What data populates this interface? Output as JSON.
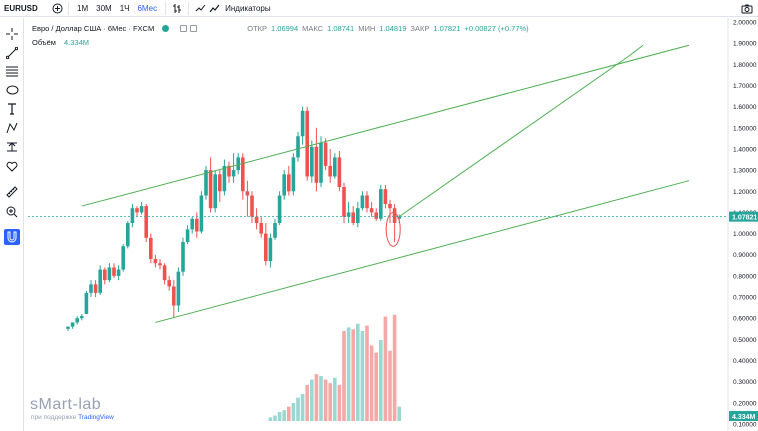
{
  "toolbar": {
    "symbol": "EURUSD",
    "intervals": [
      "1М",
      "30М",
      "1Ч",
      "6Мес"
    ],
    "active_interval": "6Мес",
    "indicators_label": "Индикаторы"
  },
  "legend": {
    "title": "Евро / Доллар США · 6Мес · FXCM",
    "open_label": "ОТКР",
    "open": "1.06994",
    "high_label": "МАКС",
    "high": "1.08741",
    "low_label": "МИН",
    "low": "1.04819",
    "close_label": "ЗАКР",
    "close": "1.07821",
    "change": "+0.00827 (+0.77%)",
    "volume_label": "Объём",
    "volume": "4.334M"
  },
  "price_badge": "1.07821",
  "volume_badge": "4.334M",
  "watermark": {
    "brand": "sMart-lab",
    "sub_prefix": "при поддержке",
    "sub_link": "TradingView"
  },
  "colors": {
    "up": "#26a69a",
    "down": "#ef5350",
    "vol_up": "#9ad8d2",
    "vol_down": "#f5a8a6",
    "trendline": "#4caf50",
    "accent": "#2962ff"
  },
  "chart_data": {
    "type": "candlestick",
    "title": "Евро / Доллар США · 6Мес · FXCM",
    "ylim": [
      0.1,
      2.0
    ],
    "y_ticks": [
      "2.00000",
      "1.90000",
      "1.80000",
      "1.70000",
      "1.60000",
      "1.50000",
      "1.40000",
      "1.30000",
      "1.20000",
      "1.10000",
      "1.00000",
      "0.90000",
      "0.80000",
      "0.70000",
      "0.60000",
      "0.50000",
      "0.40000",
      "0.30000",
      "0.20000",
      "0.10000"
    ],
    "candles": [
      [
        0.55,
        0.56,
        0.54,
        0.56
      ],
      [
        0.56,
        0.58,
        0.55,
        0.58
      ],
      [
        0.58,
        0.61,
        0.57,
        0.6
      ],
      [
        0.6,
        0.62,
        0.59,
        0.61
      ],
      [
        0.62,
        0.73,
        0.62,
        0.72
      ],
      [
        0.72,
        0.78,
        0.7,
        0.76
      ],
      [
        0.76,
        0.78,
        0.7,
        0.72
      ],
      [
        0.72,
        0.85,
        0.71,
        0.83
      ],
      [
        0.83,
        0.84,
        0.76,
        0.78
      ],
      [
        0.78,
        0.86,
        0.77,
        0.84
      ],
      [
        0.84,
        0.86,
        0.79,
        0.8
      ],
      [
        0.8,
        0.85,
        0.78,
        0.83
      ],
      [
        0.83,
        0.95,
        0.82,
        0.94
      ],
      [
        0.94,
        1.06,
        0.93,
        1.05
      ],
      [
        1.05,
        1.14,
        1.03,
        1.12
      ],
      [
        1.12,
        1.13,
        1.08,
        1.1
      ],
      [
        1.1,
        1.15,
        1.09,
        1.13
      ],
      [
        1.13,
        1.14,
        0.96,
        0.98
      ],
      [
        0.98,
        1.0,
        0.86,
        0.88
      ],
      [
        0.88,
        0.9,
        0.84,
        0.86
      ],
      [
        0.86,
        0.88,
        0.83,
        0.85
      ],
      [
        0.85,
        0.86,
        0.76,
        0.78
      ],
      [
        0.78,
        0.8,
        0.73,
        0.75
      ],
      [
        0.75,
        0.78,
        0.6,
        0.66
      ],
      [
        0.66,
        0.84,
        0.63,
        0.82
      ],
      [
        0.82,
        0.98,
        0.8,
        0.96
      ],
      [
        0.96,
        1.04,
        0.95,
        1.02
      ],
      [
        1.02,
        1.08,
        1.0,
        1.07
      ],
      [
        1.07,
        1.1,
        0.98,
        1.01
      ],
      [
        1.01,
        1.2,
        1.0,
        1.18
      ],
      [
        1.18,
        1.32,
        1.16,
        1.3
      ],
      [
        1.3,
        1.36,
        1.1,
        1.12
      ],
      [
        1.12,
        1.3,
        1.1,
        1.28
      ],
      [
        1.28,
        1.3,
        1.15,
        1.2
      ],
      [
        1.2,
        1.35,
        1.18,
        1.32
      ],
      [
        1.32,
        1.34,
        1.24,
        1.27
      ],
      [
        1.27,
        1.38,
        1.24,
        1.3
      ],
      [
        1.3,
        1.38,
        1.28,
        1.36
      ],
      [
        1.36,
        1.38,
        1.16,
        1.2
      ],
      [
        1.2,
        1.25,
        1.08,
        1.18
      ],
      [
        1.18,
        1.2,
        1.05,
        1.08
      ],
      [
        1.08,
        1.12,
        1.02,
        1.05
      ],
      [
        1.05,
        1.08,
        0.98,
        1.0
      ],
      [
        1.0,
        1.05,
        0.85,
        0.87
      ],
      [
        0.87,
        1.0,
        0.84,
        0.98
      ],
      [
        0.98,
        1.07,
        0.97,
        1.05
      ],
      [
        1.05,
        1.2,
        1.04,
        1.18
      ],
      [
        1.18,
        1.3,
        1.16,
        1.28
      ],
      [
        1.28,
        1.32,
        1.18,
        1.2
      ],
      [
        1.2,
        1.38,
        1.18,
        1.36
      ],
      [
        1.36,
        1.48,
        1.34,
        1.46
      ],
      [
        1.46,
        1.6,
        1.42,
        1.58
      ],
      [
        1.58,
        1.6,
        1.25,
        1.27
      ],
      [
        1.27,
        1.44,
        1.24,
        1.41
      ],
      [
        1.41,
        1.5,
        1.2,
        1.24
      ],
      [
        1.24,
        1.46,
        1.22,
        1.43
      ],
      [
        1.43,
        1.45,
        1.3,
        1.32
      ],
      [
        1.32,
        1.4,
        1.24,
        1.27
      ],
      [
        1.27,
        1.38,
        1.26,
        1.36
      ],
      [
        1.36,
        1.39,
        1.2,
        1.22
      ],
      [
        1.22,
        1.24,
        1.05,
        1.08
      ],
      [
        1.08,
        1.15,
        1.05,
        1.1
      ],
      [
        1.1,
        1.13,
        1.04,
        1.05
      ],
      [
        1.05,
        1.15,
        1.03,
        1.12
      ],
      [
        1.12,
        1.2,
        1.11,
        1.18
      ],
      [
        1.18,
        1.2,
        1.1,
        1.12
      ],
      [
        1.12,
        1.15,
        1.08,
        1.1
      ],
      [
        1.1,
        1.12,
        1.06,
        1.07
      ],
      [
        1.07,
        1.23,
        1.06,
        1.21
      ],
      [
        1.21,
        1.23,
        1.12,
        1.14
      ],
      [
        1.14,
        1.16,
        1.05,
        1.12
      ],
      [
        1.12,
        1.14,
        0.96,
        1.05
      ],
      [
        1.07,
        1.09,
        1.05,
        1.08
      ]
    ],
    "volume": [
      0.0,
      0.0,
      0.0,
      0.0,
      0.0,
      0.0,
      0.0,
      0.0,
      0.0,
      0.0,
      0.0,
      0.0,
      0.0,
      0.0,
      0.0,
      0.0,
      0.0,
      0.0,
      0.0,
      0.0,
      0.0,
      0.0,
      0.0,
      0.0,
      0.0,
      0.0,
      0.0,
      0.0,
      0.0,
      0.0,
      0.0,
      0.0,
      0.0,
      0.0,
      0.0,
      0.0,
      0.0,
      0.0,
      0.0,
      0.0,
      0.0,
      0.0,
      0.0,
      0.0,
      0.2,
      0.3,
      0.5,
      0.6,
      0.8,
      1.0,
      1.3,
      1.5,
      2.0,
      2.3,
      2.6,
      2.5,
      2.3,
      2.1,
      2.4,
      2.0,
      5.0,
      5.2,
      5.1,
      5.4,
      5.0,
      5.3,
      4.2,
      3.8,
      4.5,
      5.8,
      3.9,
      5.9,
      0.8
    ],
    "trendlines": [
      {
        "name": "channel-top",
        "from": [
          3,
          1.13
        ],
        "to": [
          135,
          1.89
        ]
      },
      {
        "name": "channel-bottom",
        "from": [
          19,
          0.58
        ],
        "to": [
          135,
          1.25
        ]
      },
      {
        "name": "projection-up",
        "from": [
          72,
          1.08
        ],
        "to": [
          122,
          1.84
        ]
      },
      {
        "name": "projection-top",
        "from": [
          122,
          1.84
        ],
        "to": [
          125,
          1.89
        ]
      }
    ]
  }
}
